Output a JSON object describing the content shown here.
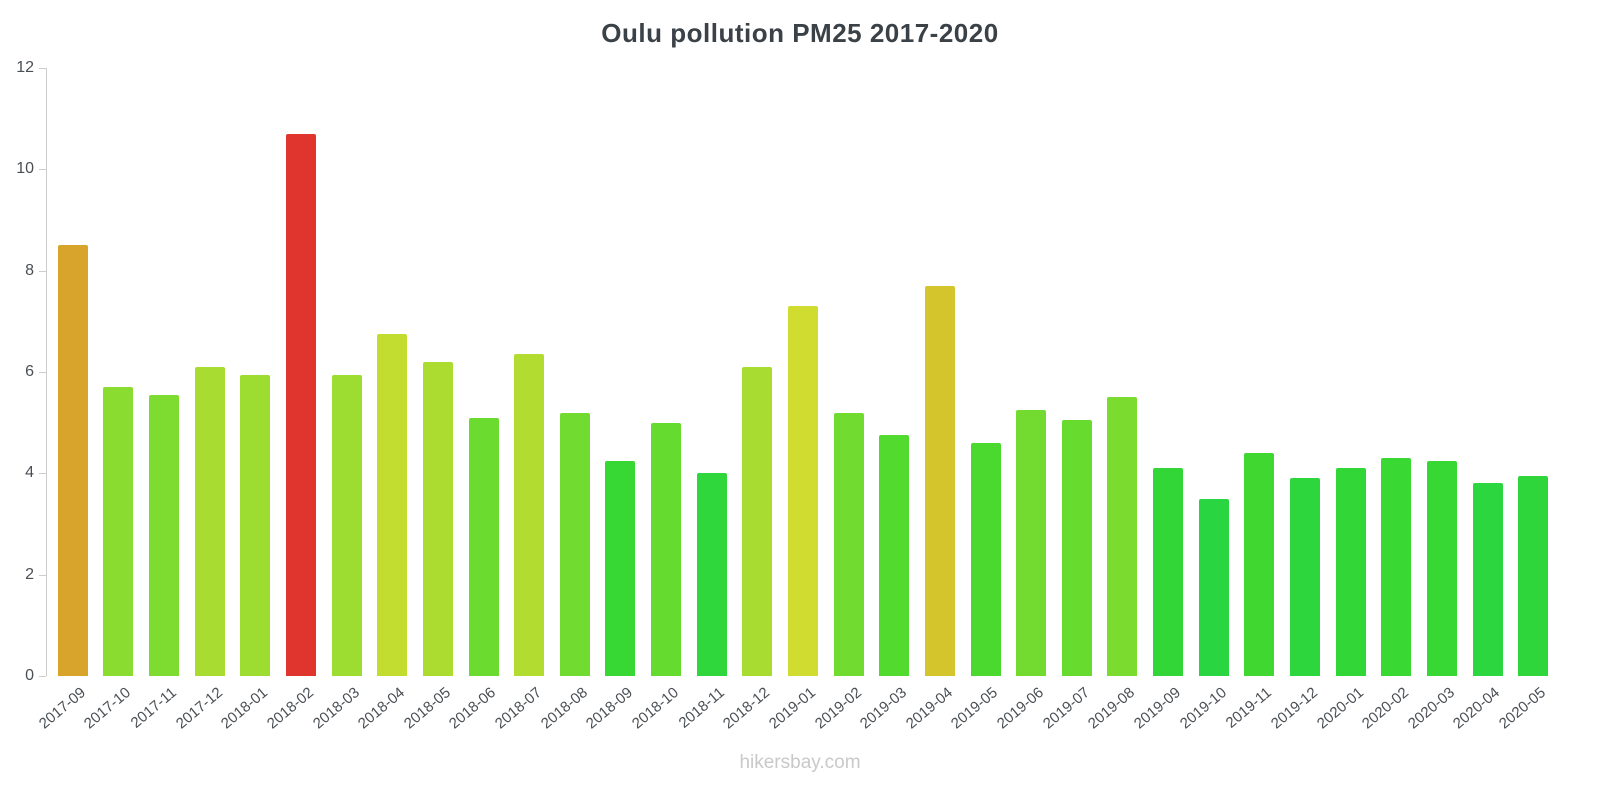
{
  "chart": {
    "title": "Oulu pollution PM25 2017-2020",
    "watermark": "hikersbay.com"
  },
  "chart_data": {
    "type": "bar",
    "title": "Oulu pollution PM25 2017-2020",
    "xlabel": "",
    "ylabel": "",
    "ylim": [
      0,
      12
    ],
    "yticks": [
      0,
      2,
      4,
      6,
      8,
      10,
      12
    ],
    "grid": false,
    "legend": false,
    "categories": [
      "2017-09",
      "2017-10",
      "2017-11",
      "2017-12",
      "2018-01",
      "2018-02",
      "2018-03",
      "2018-04",
      "2018-05",
      "2018-06",
      "2018-07",
      "2018-08",
      "2018-09",
      "2018-10",
      "2018-11",
      "2018-12",
      "2019-01",
      "2019-02",
      "2019-03",
      "2019-04",
      "2019-05",
      "2019-06",
      "2019-07",
      "2019-08",
      "2019-09",
      "2019-10",
      "2019-11",
      "2019-12",
      "2020-01",
      "2020-02",
      "2020-03",
      "2020-04",
      "2020-05"
    ],
    "values": [
      8.5,
      5.7,
      5.55,
      6.1,
      5.95,
      10.7,
      5.95,
      6.75,
      6.2,
      5.1,
      6.35,
      5.2,
      4.25,
      5.0,
      4.0,
      6.1,
      7.3,
      5.2,
      4.75,
      7.7,
      4.6,
      5.25,
      5.05,
      5.5,
      4.1,
      3.5,
      4.4,
      3.9,
      4.1,
      4.3,
      4.25,
      3.8,
      3.95
    ],
    "colors": [
      "#D9A42B",
      "#8BDC30",
      "#7EDB2F",
      "#A8DC30",
      "#9DDC30",
      "#E0342E",
      "#9DDC30",
      "#C3DC30",
      "#ACDC30",
      "#6CDB2F",
      "#B3DC30",
      "#71DB2F",
      "#37D734",
      "#65DB2F",
      "#2FD63C",
      "#A8DC30",
      "#D0DC30",
      "#71DB2F",
      "#53DA2F",
      "#D5C52C",
      "#4BD92F",
      "#73DB2F",
      "#68DB2F",
      "#7BDB2F",
      "#32D737",
      "#2AD542",
      "#40D830",
      "#2ED63D",
      "#32D737",
      "#39D832",
      "#37D734",
      "#2CD63F",
      "#2FD63B"
    ],
    "axis_color": "#cccccc",
    "label_color": "#4a4f54"
  }
}
